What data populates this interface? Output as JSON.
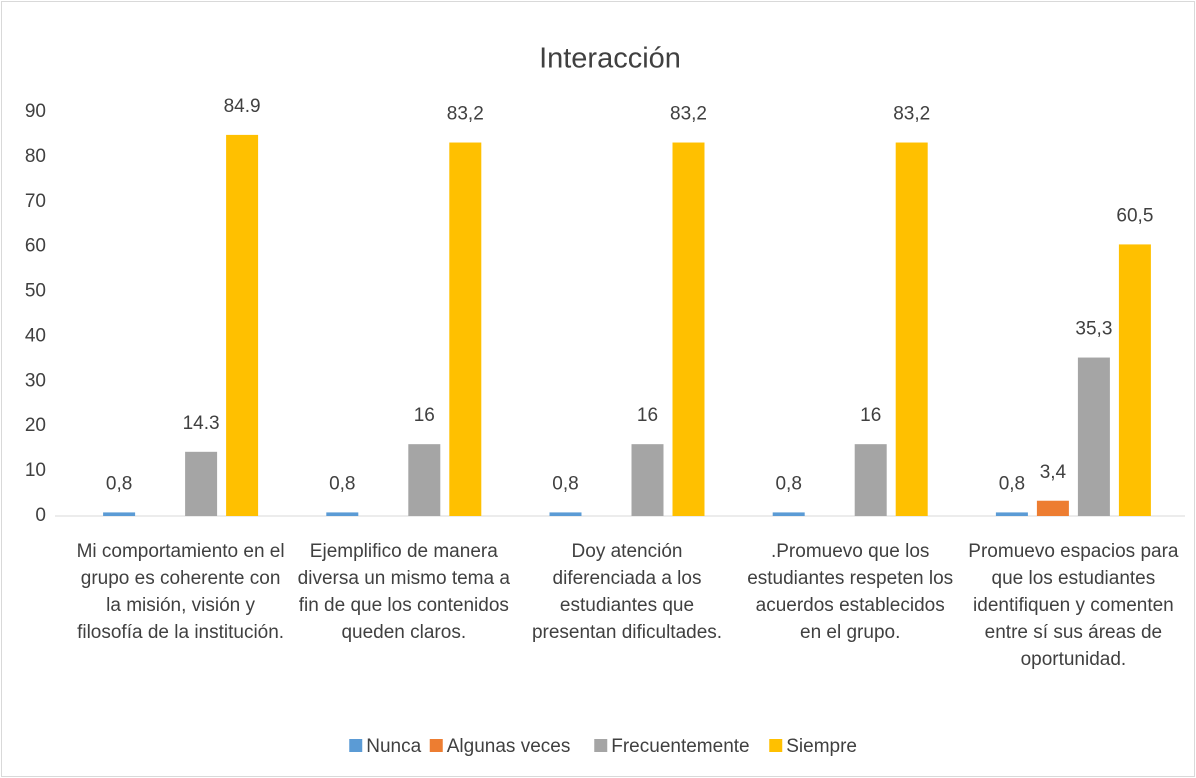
{
  "chart_data": {
    "type": "bar",
    "title": "Interacción",
    "categories": [
      "Mi comportamiento en el grupo es coherente con la misión, visión y filosofía de la institución.",
      "Ejemplifico de manera diversa un mismo tema a fin de que los contenidos queden claros.",
      "Doy atención diferenciada a los estudiantes que presentan dificultades.",
      ".Promuevo que los estudiantes respeten los acuerdos establecidos en el grupo.",
      "Promuevo espacios para que los estudiantes identifiquen y comenten entre sí sus áreas de oportunidad."
    ],
    "series": [
      {
        "name": "Nunca",
        "color": "#5b9bd5",
        "values": [
          0.8,
          0.8,
          0.8,
          0.8,
          0.8
        ],
        "value_labels": [
          "0,8",
          "0,8",
          "0,8",
          "0,8",
          "0,8"
        ]
      },
      {
        "name": "Algunas veces",
        "color": "#ed7d31",
        "values": [
          null,
          null,
          null,
          null,
          3.4
        ],
        "value_labels": [
          null,
          null,
          null,
          null,
          "3,4"
        ]
      },
      {
        "name": "Frecuentemente",
        "color": "#a5a5a5",
        "values": [
          14.3,
          16,
          16,
          16,
          35.3
        ],
        "value_labels": [
          "14.3",
          "16",
          "16",
          "16",
          "35,3"
        ]
      },
      {
        "name": "Siempre",
        "color": "#ffc000",
        "values": [
          84.9,
          83.2,
          83.2,
          83.2,
          60.5
        ],
        "value_labels": [
          "84.9",
          "83,2",
          "83,2",
          "83,2",
          "60,5"
        ]
      }
    ],
    "ylim": [
      0,
      90
    ],
    "yticks": [
      0,
      10,
      20,
      30,
      40,
      50,
      60,
      70,
      80,
      90
    ],
    "grid": false,
    "legend": "bottom"
  }
}
